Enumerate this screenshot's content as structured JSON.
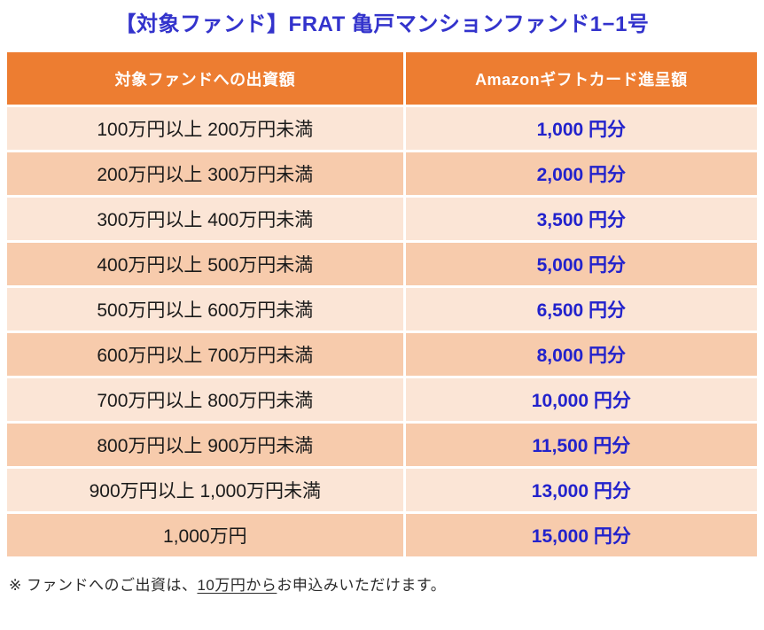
{
  "title": "【対象ファンド】FRAT 亀戸マンションファンド1−1号",
  "table": {
    "headers": {
      "investment": "対象ファンドへの出資額",
      "gift": "Amazonギフトカード進呈額"
    },
    "rows": [
      {
        "range": "100万円以上 200万円未満",
        "gift": "1,000 円分"
      },
      {
        "range": "200万円以上 300万円未満",
        "gift": "2,000 円分"
      },
      {
        "range": "300万円以上 400万円未満",
        "gift": "3,500 円分"
      },
      {
        "range": "400万円以上 500万円未満",
        "gift": "5,000 円分"
      },
      {
        "range": "500万円以上 600万円未満",
        "gift": "6,500 円分"
      },
      {
        "range": "600万円以上 700万円未満",
        "gift": "8,000 円分"
      },
      {
        "range": "700万円以上 800万円未満",
        "gift": "10,000 円分"
      },
      {
        "range": "800万円以上 900万円未満",
        "gift": "11,500 円分"
      },
      {
        "range": "900万円以上 1,000万円未満",
        "gift": "13,000 円分"
      },
      {
        "range": "1,000万円",
        "gift": "15,000 円分"
      }
    ]
  },
  "footnote": {
    "prefix": "※ ファンドへのご出資は、",
    "underlined": "10万円から",
    "suffix": "お申込みいただけます。"
  },
  "colors": {
    "title_text": "#3333cc",
    "header_background": "#ed7d31",
    "header_text": "#ffffff",
    "row_light_background": "#fbe5d6",
    "row_dark_background": "#f7cbac",
    "range_text": "#1a1a1a",
    "gift_value_text": "#2222cc",
    "footnote_text": "#2b2b2b"
  }
}
